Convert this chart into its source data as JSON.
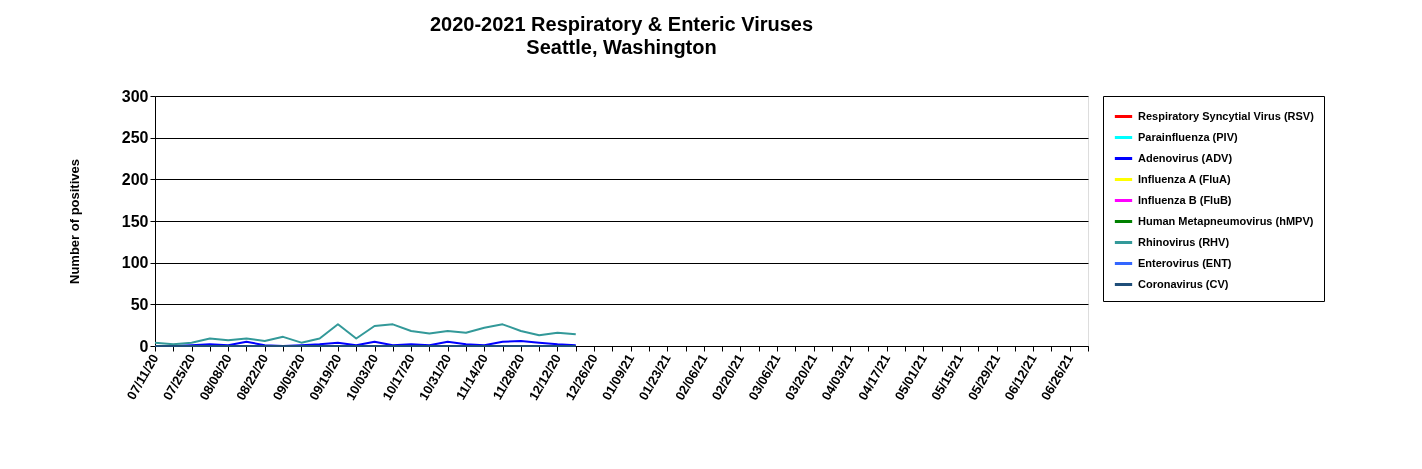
{
  "chart_data": {
    "type": "line",
    "title": "2020-2021 Respiratory & Enteric Viruses",
    "subtitle": "Seattle, Washington",
    "ylabel": "Number of positives",
    "categories": [
      "07/11/20",
      null,
      "07/25/20",
      null,
      "08/08/20",
      null,
      "08/22/20",
      null,
      "09/05/20",
      null,
      "09/19/20",
      null,
      "10/03/20",
      null,
      "10/17/20",
      null,
      "10/31/20",
      null,
      "11/14/20",
      null,
      "11/28/20",
      null,
      "12/12/20",
      null,
      "12/26/20",
      null,
      "01/09/21",
      null,
      "01/23/21",
      null,
      "02/06/21",
      null,
      "02/20/21",
      null,
      "03/06/21",
      null,
      "03/20/21",
      null,
      "04/03/21",
      null,
      "04/17/21",
      null,
      "05/01/21",
      null,
      "05/15/21",
      null,
      "05/29/21",
      null,
      "06/12/21",
      null,
      "06/26/21",
      null
    ],
    "ylim": [
      0,
      300
    ],
    "yticks": [
      0,
      50,
      100,
      150,
      200,
      250,
      300
    ],
    "grid": "y",
    "legend": "right",
    "marker": "none",
    "line_style": "solid",
    "series": [
      {
        "name": "Respiratory Syncytial Virus (RSV)",
        "color": "#ff0000",
        "values": [
          null,
          null,
          null,
          null,
          null,
          null,
          null,
          null,
          null,
          null,
          null,
          null,
          null,
          null,
          null,
          null,
          null,
          null,
          null,
          null,
          null,
          null,
          null,
          null,
          null,
          null,
          null,
          null,
          null,
          null,
          null,
          null,
          null,
          null,
          null,
          null,
          null,
          null,
          null,
          null,
          null,
          null,
          null,
          null,
          null,
          null,
          null,
          null,
          null,
          null,
          null,
          null
        ]
      },
      {
        "name": "Parainfluenza (PIV)",
        "color": "#00ffff",
        "values": [
          null,
          null,
          null,
          null,
          null,
          null,
          null,
          null,
          null,
          null,
          null,
          null,
          null,
          null,
          null,
          null,
          null,
          null,
          null,
          null,
          null,
          null,
          null,
          null,
          null,
          null,
          null,
          null,
          null,
          null,
          null,
          null,
          null,
          null,
          null,
          null,
          null,
          null,
          null,
          null,
          null,
          null,
          null,
          null,
          null,
          null,
          null,
          null,
          null,
          null,
          null,
          null
        ]
      },
      {
        "name": "Adenovirus (ADV)",
        "color": "#0000ff",
        "values": [
          0,
          0,
          1,
          2,
          1,
          5,
          1,
          0,
          1,
          2,
          4,
          1,
          5,
          1,
          2,
          1,
          5,
          2,
          1,
          5,
          6,
          4,
          2,
          1,
          null,
          null,
          null,
          null,
          null,
          null,
          null,
          null,
          null,
          null,
          null,
          null,
          null,
          null,
          null,
          null,
          null,
          null,
          null,
          null,
          null,
          null,
          null,
          null,
          null,
          null,
          null,
          null
        ]
      },
      {
        "name": "Influenza A (FluA)",
        "color": "#ffff00",
        "values": [
          null,
          null,
          null,
          null,
          null,
          null,
          null,
          null,
          null,
          null,
          null,
          null,
          null,
          null,
          null,
          null,
          null,
          null,
          null,
          null,
          null,
          null,
          null,
          null,
          null,
          null,
          null,
          null,
          null,
          null,
          null,
          null,
          null,
          null,
          null,
          null,
          null,
          null,
          null,
          null,
          null,
          null,
          null,
          null,
          null,
          null,
          null,
          null,
          null,
          null,
          null,
          null
        ]
      },
      {
        "name": "Influenza B (FluB)",
        "color": "#ff00ff",
        "values": [
          null,
          null,
          null,
          null,
          null,
          null,
          null,
          null,
          null,
          null,
          null,
          null,
          null,
          null,
          null,
          null,
          null,
          null,
          null,
          null,
          null,
          null,
          null,
          null,
          null,
          null,
          null,
          null,
          null,
          null,
          null,
          null,
          null,
          null,
          null,
          null,
          null,
          null,
          null,
          null,
          null,
          null,
          null,
          null,
          null,
          null,
          null,
          null,
          null,
          null,
          null,
          null
        ]
      },
      {
        "name": "Human Metapneumovirus (hMPV)",
        "color": "#008000",
        "values": [
          null,
          null,
          null,
          null,
          null,
          null,
          null,
          null,
          null,
          null,
          null,
          null,
          null,
          null,
          null,
          null,
          null,
          null,
          null,
          null,
          null,
          null,
          null,
          null,
          null,
          null,
          null,
          null,
          null,
          null,
          null,
          null,
          null,
          null,
          null,
          null,
          null,
          null,
          null,
          null,
          null,
          null,
          null,
          null,
          null,
          null,
          null,
          null,
          null,
          null,
          null,
          null
        ]
      },
      {
        "name": "Rhinovirus    (RHV)",
        "color": "#339999",
        "values": [
          4,
          2,
          4,
          9,
          7,
          9,
          6,
          11,
          4,
          9,
          26,
          9,
          24,
          26,
          18,
          15,
          18,
          16,
          22,
          26,
          18,
          13,
          16,
          14,
          null,
          null,
          null,
          null,
          null,
          null,
          null,
          null,
          null,
          null,
          null,
          null,
          null,
          null,
          null,
          null,
          null,
          null,
          null,
          null,
          null,
          null,
          null,
          null,
          null,
          null,
          null,
          null
        ]
      },
      {
        "name": "Enterovirus (ENT)",
        "color": "#3366ff",
        "values": [
          null,
          null,
          null,
          null,
          null,
          null,
          null,
          null,
          null,
          null,
          null,
          null,
          null,
          null,
          null,
          null,
          null,
          null,
          null,
          null,
          null,
          null,
          null,
          null,
          null,
          null,
          null,
          null,
          null,
          null,
          null,
          null,
          null,
          null,
          null,
          null,
          null,
          null,
          null,
          null,
          null,
          null,
          null,
          null,
          null,
          null,
          null,
          null,
          null,
          null,
          null,
          null
        ]
      },
      {
        "name": "Coronavirus (CV)",
        "color": "#1f4e79",
        "values": [
          0,
          0,
          0,
          0,
          0,
          0,
          0,
          0,
          0,
          0,
          0,
          0,
          0,
          0,
          0,
          0,
          0,
          0,
          0,
          0,
          0,
          0,
          0,
          0,
          null,
          null,
          null,
          null,
          null,
          null,
          null,
          null,
          null,
          null,
          null,
          null,
          null,
          null,
          null,
          null,
          null,
          null,
          null,
          null,
          null,
          null,
          null,
          null,
          null,
          null,
          null,
          null
        ]
      }
    ]
  }
}
